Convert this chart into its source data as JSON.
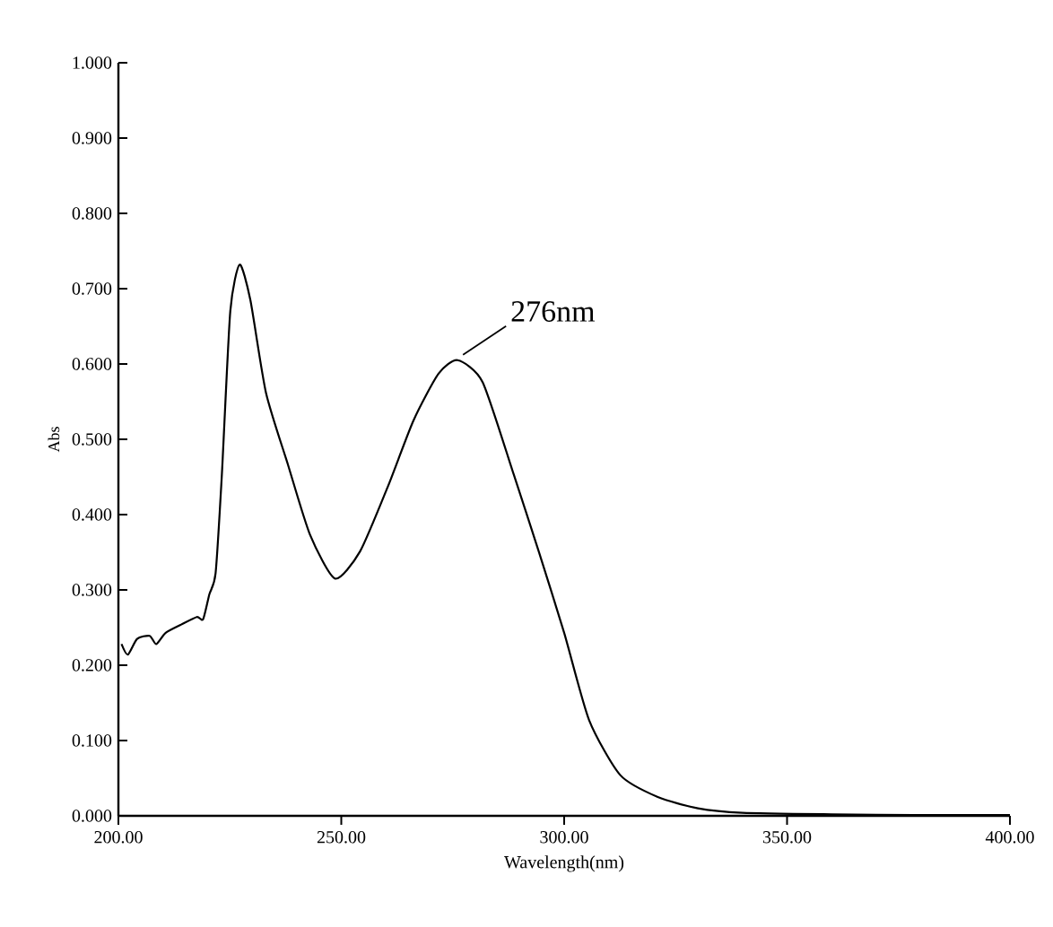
{
  "chart_data": {
    "type": "line",
    "xlabel": "Wavelength(nm)",
    "ylabel": "Abs",
    "x": [
      200.7,
      202.1,
      204.2,
      207.0,
      208.5,
      210.6,
      214.1,
      217.6,
      219.0,
      220.4,
      221.8,
      223.2,
      225.1,
      227.2,
      229.6,
      233.1,
      238.0,
      243.0,
      248.6,
      254.2,
      260.5,
      266.2,
      271.8,
      276.1,
      281.7,
      288.7,
      294.3,
      300.0,
      305.6,
      312.6,
      321.0,
      330.0,
      340.0,
      360.0,
      380.0,
      400.0
    ],
    "series": [
      {
        "color": "#000000",
        "values": [
          0.228,
          0.214,
          0.235,
          0.239,
          0.228,
          0.243,
          0.254,
          0.264,
          0.261,
          0.294,
          0.322,
          0.452,
          0.67,
          0.732,
          0.685,
          0.562,
          0.467,
          0.373,
          0.315,
          0.351,
          0.438,
          0.525,
          0.587,
          0.605,
          0.576,
          0.453,
          0.351,
          0.243,
          0.127,
          0.054,
          0.025,
          0.01,
          0.004,
          0.002,
          0.001,
          0.001
        ]
      }
    ],
    "xlim": [
      200,
      400
    ],
    "ylim": [
      0,
      1
    ],
    "xticks": [
      {
        "value": 200,
        "label": "200.00"
      },
      {
        "value": 250,
        "label": "250.00"
      },
      {
        "value": 300,
        "label": "300.00"
      },
      {
        "value": 350,
        "label": "350.00"
      },
      {
        "value": 400,
        "label": "400.00"
      }
    ],
    "yticks": [
      {
        "value": 0,
        "label": "0.000"
      },
      {
        "value": 0.1,
        "label": "0.100"
      },
      {
        "value": 0.2,
        "label": "0.200"
      },
      {
        "value": 0.3,
        "label": "0.300"
      },
      {
        "value": 0.4,
        "label": "0.400"
      },
      {
        "value": 0.5,
        "label": "0.500"
      },
      {
        "value": 0.6,
        "label": "0.600"
      },
      {
        "value": 0.7,
        "label": "0.700"
      },
      {
        "value": 0.8,
        "label": "0.800"
      },
      {
        "value": 0.9,
        "label": "0.900"
      },
      {
        "value": 1.0,
        "label": "1.000"
      }
    ],
    "annotations": [
      {
        "text": "276nm",
        "x": 276.1,
        "y": 0.605
      }
    ],
    "marker": "none",
    "line_style": "solid"
  }
}
